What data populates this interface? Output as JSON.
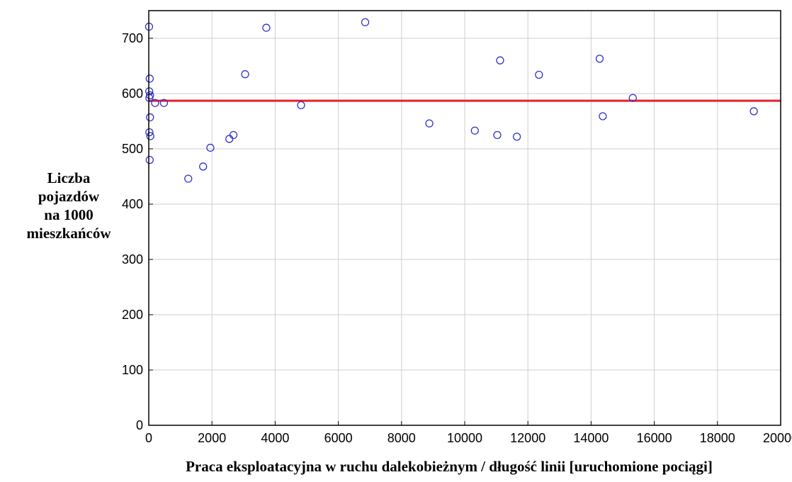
{
  "chart_data": {
    "type": "scatter",
    "title": "",
    "xlabel": "Praca eksploatacyjna w ruchu dalekobieżnym / długość linii [uruchomione pociągi]",
    "ylabel_lines": [
      "Liczba",
      "pojazdów",
      "na 1000",
      "mieszkańców"
    ],
    "xlim": [
      0,
      20000
    ],
    "ylim": [
      0,
      750
    ],
    "x_ticks": [
      0,
      2000,
      4000,
      6000,
      8000,
      10000,
      12000,
      14000,
      16000,
      18000,
      20000
    ],
    "y_ticks": [
      0,
      100,
      200,
      300,
      400,
      500,
      600,
      700
    ],
    "grid": true,
    "marker_color": "#3333cc",
    "fit_line_color": "#e8202a",
    "fit_line": {
      "y": 587
    },
    "points": [
      {
        "x": 10,
        "y": 721
      },
      {
        "x": 30,
        "y": 627
      },
      {
        "x": 15,
        "y": 604
      },
      {
        "x": 40,
        "y": 597
      },
      {
        "x": 20,
        "y": 592
      },
      {
        "x": 200,
        "y": 583
      },
      {
        "x": 480,
        "y": 583
      },
      {
        "x": 40,
        "y": 557
      },
      {
        "x": 20,
        "y": 530
      },
      {
        "x": 50,
        "y": 523
      },
      {
        "x": 30,
        "y": 480
      },
      {
        "x": 1250,
        "y": 446
      },
      {
        "x": 1720,
        "y": 468
      },
      {
        "x": 1950,
        "y": 502
      },
      {
        "x": 2550,
        "y": 518
      },
      {
        "x": 2680,
        "y": 525
      },
      {
        "x": 3050,
        "y": 635
      },
      {
        "x": 3720,
        "y": 719
      },
      {
        "x": 4820,
        "y": 579
      },
      {
        "x": 6850,
        "y": 729
      },
      {
        "x": 8880,
        "y": 546
      },
      {
        "x": 10320,
        "y": 533
      },
      {
        "x": 11030,
        "y": 525
      },
      {
        "x": 11120,
        "y": 660
      },
      {
        "x": 11650,
        "y": 522
      },
      {
        "x": 12350,
        "y": 634
      },
      {
        "x": 14270,
        "y": 663
      },
      {
        "x": 14370,
        "y": 559
      },
      {
        "x": 15320,
        "y": 592
      },
      {
        "x": 19150,
        "y": 568
      }
    ]
  }
}
